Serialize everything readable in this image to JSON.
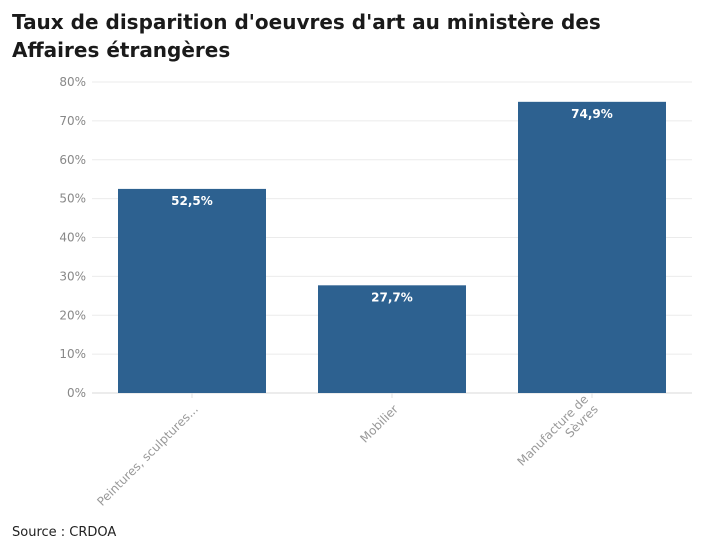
{
  "chart_data": {
    "type": "bar",
    "title": "Taux de disparition d'oeuvres d'art au ministère des Affaires étrangères",
    "categories": [
      "Peintures, sculptures...",
      "Mobilier",
      "Manufacture de Sèvres"
    ],
    "category_lines": [
      [
        "Peintures, sculptures..."
      ],
      [
        "Mobilier"
      ],
      [
        "Manufacture de",
        "Sèvres"
      ]
    ],
    "values": [
      52.5,
      27.7,
      74.9
    ],
    "data_labels": [
      "52,5%",
      "27,7%",
      "74,9%"
    ],
    "yticks": [
      "0%",
      "10%",
      "20%",
      "30%",
      "40%",
      "50%",
      "60%",
      "70%",
      "80%"
    ],
    "ylim": [
      0,
      80
    ],
    "xlabel": "",
    "ylabel": "",
    "grid": true,
    "bar_color": "#2d6190"
  },
  "source": "Source : CRDOA"
}
